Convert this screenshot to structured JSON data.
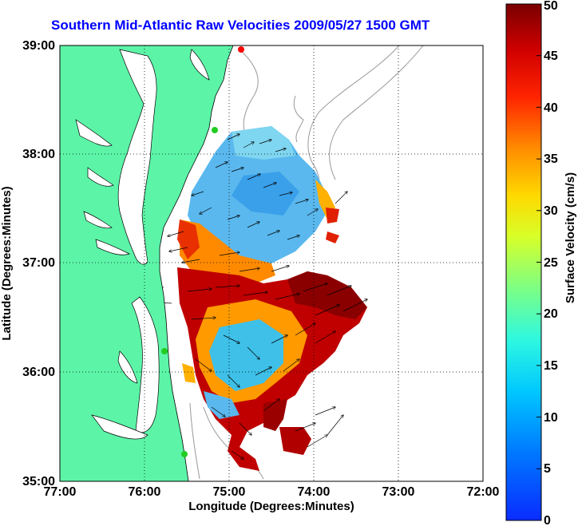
{
  "title": "Southern Mid-Atlantic Raw Velocities 2009/05/27 1500 GMT",
  "map": {
    "xlabel": "Longitude (Degrees:Minutes)",
    "ylabel": "Latitude (Degrees:Minutes)",
    "x_ticks": [
      "77:00",
      "76:00",
      "75:00",
      "74:00",
      "73:00",
      "72:00"
    ],
    "y_ticks": [
      "39:00",
      "38:00",
      "37:00",
      "36:00",
      "35:00"
    ],
    "lon_range": [
      -77,
      -72
    ],
    "lat_range": [
      35,
      39
    ],
    "land_color": "#5cf5a8",
    "water_color": "#ffffff",
    "grid": true
  },
  "colorbar": {
    "label": "Surface Velocity (cm/s)",
    "ticks": [
      "0",
      "5",
      "10",
      "15",
      "20",
      "25",
      "30",
      "35",
      "40",
      "45",
      "50"
    ],
    "range": [
      0,
      50
    ],
    "colormap": "jet"
  },
  "stations": [
    {
      "name": "station-north-red",
      "color": "#ff0000"
    },
    {
      "name": "station-cape-charles",
      "color": "#22cc22"
    },
    {
      "name": "station-va-beach",
      "color": "#22cc22"
    },
    {
      "name": "station-hatteras",
      "color": "#22cc22"
    }
  ]
}
